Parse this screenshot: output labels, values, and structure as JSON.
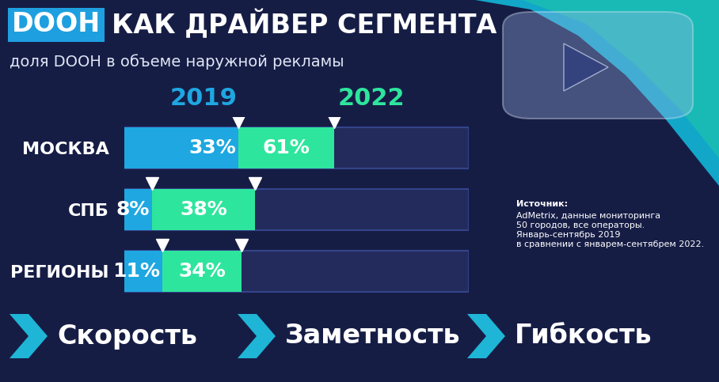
{
  "chart_data": {
    "type": "bar",
    "orientation": "horizontal",
    "title": "DOOH КАК ДРАЙВЕР СЕГМЕНТА",
    "subtitle": "доля DOOH в объеме наружной рекламы",
    "categories": [
      "МОСКВА",
      "СПБ",
      "РЕГИОНЫ"
    ],
    "series": [
      {
        "name": "2019",
        "color": "#1ea7e1",
        "values": [
          33,
          8,
          11
        ],
        "value_labels": [
          "33%",
          "8%",
          "11%"
        ]
      },
      {
        "name": "2022",
        "color": "#2ee59d",
        "values": [
          61,
          38,
          34
        ],
        "value_labels": [
          "61%",
          "38%",
          "34%"
        ]
      }
    ],
    "xlim": [
      0,
      100
    ],
    "data_labels": true,
    "tick_labels": "y",
    "grid": false,
    "annotations": [
      "Источник:",
      "AdMetrix, данные мониторинга\n50 городов, все операторы.\nЯнварь-сентябрь 2019\nв сравнении с январем-сентябрем 2022."
    ],
    "keywords": [
      "Скорость",
      "Заметность",
      "Гибкость"
    ]
  }
}
